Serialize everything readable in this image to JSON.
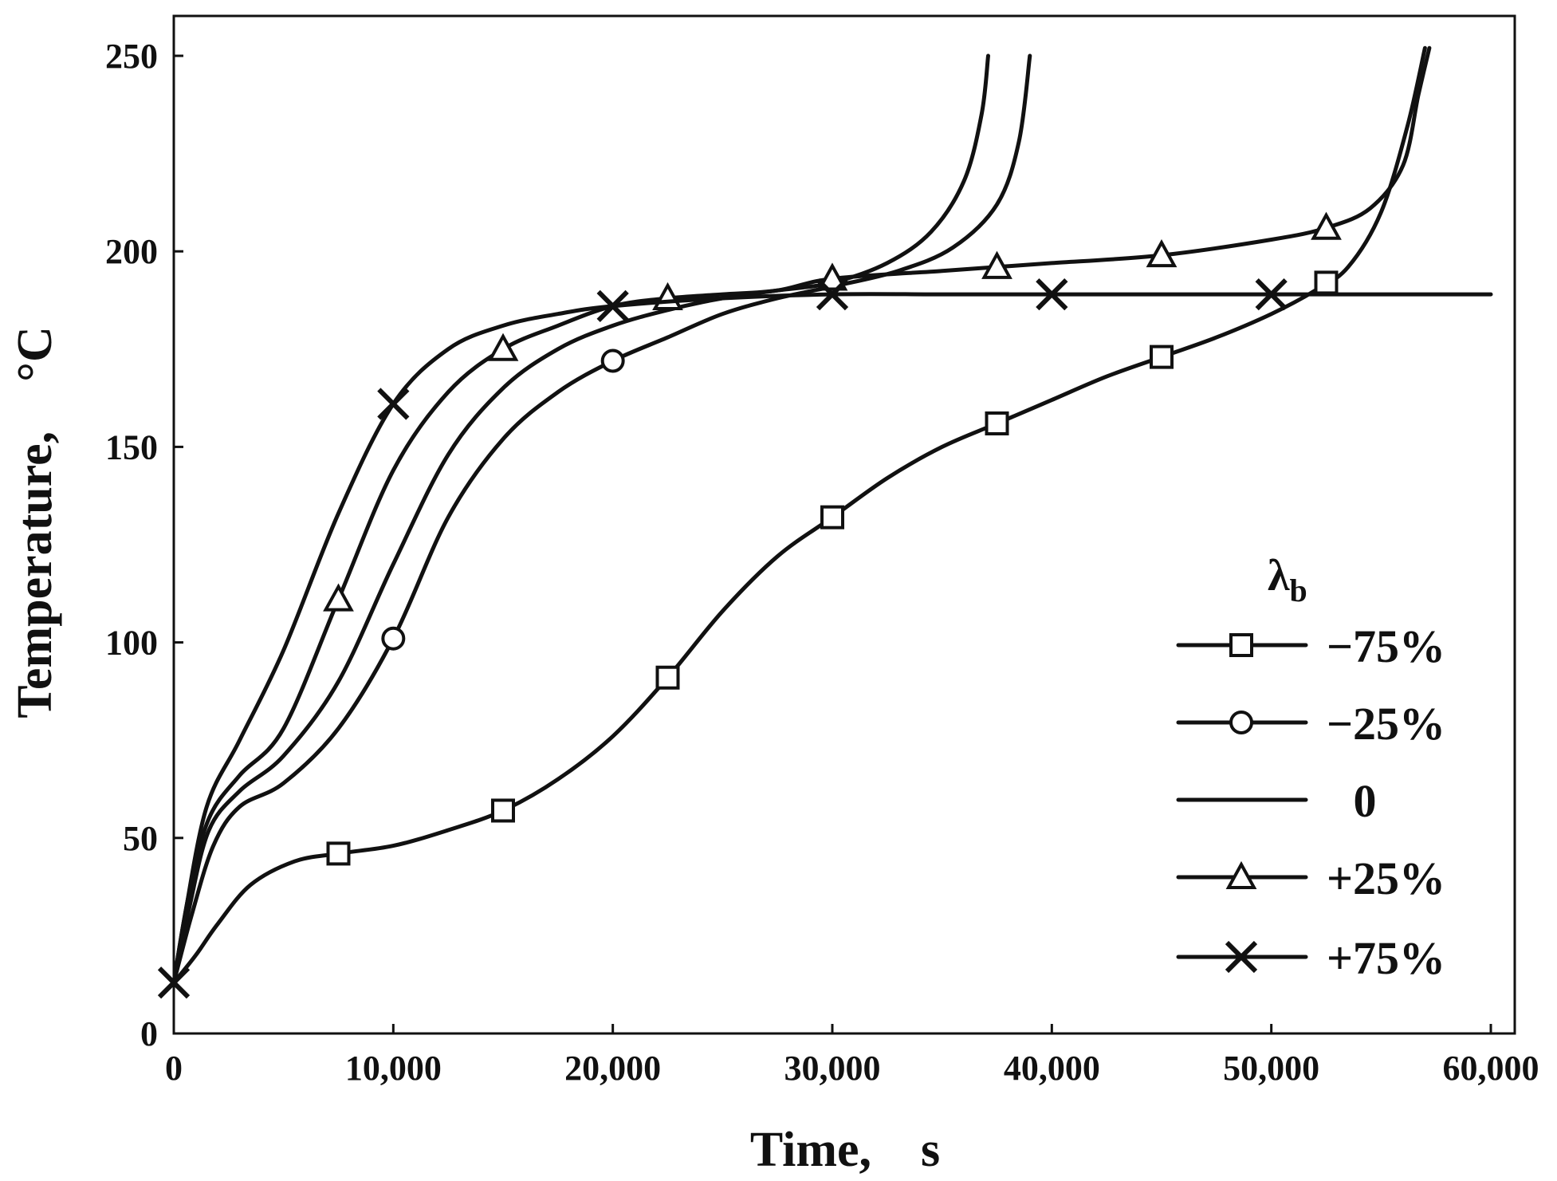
{
  "chart_data": {
    "type": "line",
    "title": "",
    "xlabel": "Time,　s",
    "ylabel": "Temperature,　°C",
    "xlim": [
      0,
      60000
    ],
    "ylim": [
      0,
      260
    ],
    "x_ticks": [
      0,
      10000,
      20000,
      30000,
      40000,
      50000,
      60000
    ],
    "x_tick_labels": [
      "0",
      "10,000",
      "20,000",
      "30,000",
      "40,000",
      "50,000",
      "60,000"
    ],
    "y_ticks": [
      0,
      50,
      100,
      150,
      200,
      250
    ],
    "y_tick_labels": [
      "0",
      "50",
      "100",
      "150",
      "200",
      "250"
    ],
    "legend": {
      "title": "λ",
      "title_subscript": "b",
      "position": "center-right"
    },
    "series": [
      {
        "name": "−75%",
        "marker": "square",
        "points": [
          [
            0,
            13
          ],
          [
            1000,
            20
          ],
          [
            2000,
            28
          ],
          [
            3500,
            38
          ],
          [
            5500,
            44
          ],
          [
            7500,
            46
          ],
          [
            10000,
            48
          ],
          [
            12500,
            52
          ],
          [
            15000,
            57
          ],
          [
            17500,
            65
          ],
          [
            20000,
            76
          ],
          [
            22500,
            91
          ],
          [
            25000,
            108
          ],
          [
            27500,
            122
          ],
          [
            30000,
            132
          ],
          [
            32500,
            142
          ],
          [
            35000,
            150
          ],
          [
            37500,
            156
          ],
          [
            40000,
            162
          ],
          [
            42500,
            168
          ],
          [
            45000,
            173
          ],
          [
            47500,
            178
          ],
          [
            50000,
            184
          ],
          [
            52000,
            190
          ],
          [
            53500,
            196
          ],
          [
            55000,
            210
          ],
          [
            56200,
            232
          ],
          [
            57000,
            252
          ]
        ],
        "marker_points": [
          [
            7500,
            46
          ],
          [
            15000,
            57
          ],
          [
            22500,
            91
          ],
          [
            30000,
            132
          ],
          [
            37500,
            156
          ],
          [
            45000,
            173
          ],
          [
            52500,
            192
          ]
        ]
      },
      {
        "name": "−25%",
        "marker": "circle",
        "points": [
          [
            0,
            13
          ],
          [
            800,
            30
          ],
          [
            1800,
            48
          ],
          [
            3000,
            58
          ],
          [
            5000,
            64
          ],
          [
            7500,
            78
          ],
          [
            10000,
            101
          ],
          [
            12500,
            132
          ],
          [
            15000,
            152
          ],
          [
            17500,
            164
          ],
          [
            20000,
            172
          ],
          [
            22500,
            178
          ],
          [
            25000,
            184
          ],
          [
            27500,
            188
          ],
          [
            30000,
            191
          ],
          [
            33000,
            195
          ],
          [
            35500,
            201
          ],
          [
            37500,
            212
          ],
          [
            38500,
            228
          ],
          [
            39000,
            250
          ]
        ],
        "marker_points": [
          [
            10000,
            101
          ],
          [
            20000,
            172
          ]
        ]
      },
      {
        "name": "0",
        "marker": "none",
        "points": [
          [
            0,
            13
          ],
          [
            700,
            32
          ],
          [
            1600,
            52
          ],
          [
            3000,
            62
          ],
          [
            5000,
            71
          ],
          [
            7500,
            90
          ],
          [
            10000,
            120
          ],
          [
            12500,
            148
          ],
          [
            15000,
            165
          ],
          [
            17500,
            175
          ],
          [
            20000,
            181
          ],
          [
            22500,
            185
          ],
          [
            25000,
            188
          ],
          [
            27500,
            190
          ],
          [
            30000,
            192
          ],
          [
            32500,
            197
          ],
          [
            34500,
            205
          ],
          [
            36000,
            218
          ],
          [
            36800,
            235
          ],
          [
            37100,
            250
          ]
        ],
        "marker_points": []
      },
      {
        "name": "+25%",
        "marker": "triangle",
        "points": [
          [
            0,
            13
          ],
          [
            700,
            36
          ],
          [
            1600,
            55
          ],
          [
            3000,
            66
          ],
          [
            5000,
            78
          ],
          [
            7500,
            111
          ],
          [
            10000,
            144
          ],
          [
            12500,
            164
          ],
          [
            15000,
            175
          ],
          [
            17500,
            181
          ],
          [
            20000,
            186
          ],
          [
            22500,
            188
          ],
          [
            25000,
            189
          ],
          [
            27500,
            190
          ],
          [
            30000,
            193
          ],
          [
            35000,
            195
          ],
          [
            37500,
            196
          ],
          [
            40000,
            197
          ],
          [
            45000,
            199
          ],
          [
            50000,
            203
          ],
          [
            52500,
            206
          ],
          [
            54500,
            211
          ],
          [
            56000,
            222
          ],
          [
            56700,
            240
          ],
          [
            57200,
            252
          ]
        ],
        "marker_points": [
          [
            7500,
            111
          ],
          [
            15000,
            175
          ],
          [
            22500,
            188
          ],
          [
            30000,
            193
          ],
          [
            37500,
            196
          ],
          [
            45000,
            199
          ],
          [
            52500,
            206
          ]
        ]
      },
      {
        "name": "+75%",
        "marker": "x",
        "points": [
          [
            0,
            13
          ],
          [
            500,
            30
          ],
          [
            1500,
            58
          ],
          [
            3000,
            75
          ],
          [
            5000,
            98
          ],
          [
            7500,
            133
          ],
          [
            10000,
            161
          ],
          [
            12500,
            175
          ],
          [
            15000,
            181
          ],
          [
            17500,
            184
          ],
          [
            20000,
            186
          ],
          [
            25000,
            188
          ],
          [
            30000,
            189
          ],
          [
            35000,
            189
          ],
          [
            40000,
            189
          ],
          [
            45000,
            189
          ],
          [
            50000,
            189
          ],
          [
            55000,
            189
          ],
          [
            60000,
            189
          ]
        ],
        "marker_points": [
          [
            0,
            13
          ],
          [
            10000,
            161
          ],
          [
            20000,
            186
          ],
          [
            30000,
            189
          ],
          [
            40000,
            189
          ],
          [
            50000,
            189
          ]
        ]
      }
    ]
  }
}
